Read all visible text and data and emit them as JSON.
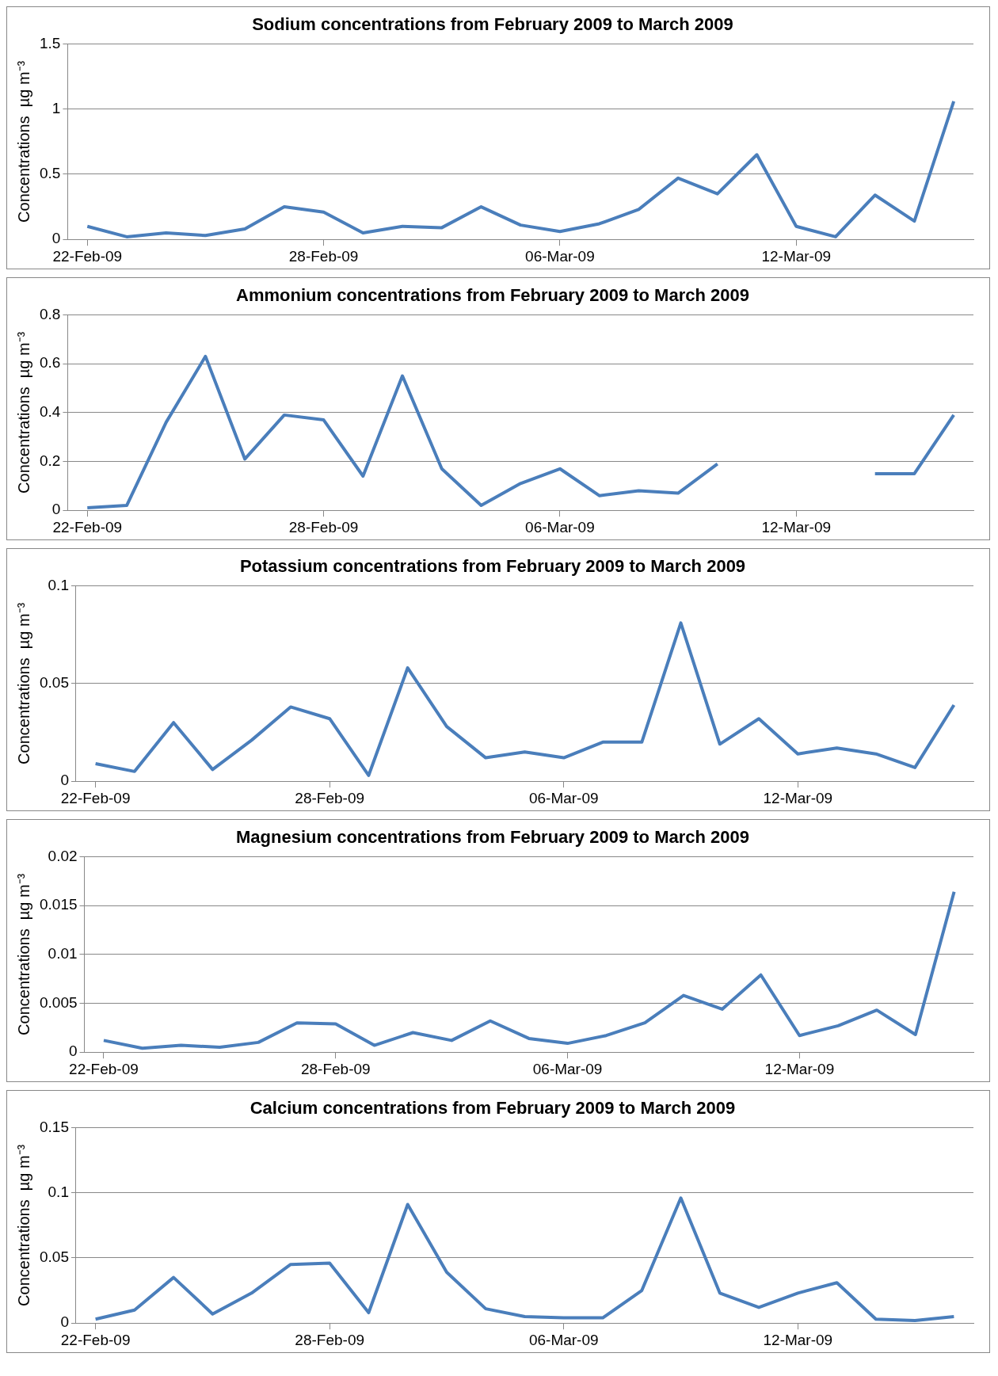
{
  "chart_data": [
    {
      "type": "line",
      "title": "Sodium concentrations from February 2009 to March 2009",
      "ylabel": "Concentrations  µg m⁻³",
      "color": "#4a7ebb",
      "marker": "none",
      "grid": "y",
      "legend": false,
      "x": [
        "2009-02-22",
        "2009-02-23",
        "2009-02-24",
        "2009-02-25",
        "2009-02-26",
        "2009-02-27",
        "2009-02-28",
        "2009-03-01",
        "2009-03-02",
        "2009-03-03",
        "2009-03-04",
        "2009-03-05",
        "2009-03-06",
        "2009-03-07",
        "2009-03-08",
        "2009-03-09",
        "2009-03-10",
        "2009-03-11",
        "2009-03-12",
        "2009-03-13",
        "2009-03-14",
        "2009-03-15",
        "2009-03-16"
      ],
      "values": [
        0.1,
        0.02,
        0.05,
        0.03,
        0.08,
        0.25,
        0.21,
        0.05,
        0.1,
        0.09,
        0.25,
        0.11,
        0.06,
        0.12,
        0.23,
        0.47,
        0.35,
        0.65,
        0.1,
        0.02,
        0.34,
        0.14,
        1.06
      ],
      "xlim": [
        "2009-02-21T12:00",
        "2009-03-16T12:00"
      ],
      "xticks": [
        {
          "value": "2009-02-22",
          "label": "22-Feb-09"
        },
        {
          "value": "2009-02-28",
          "label": "28-Feb-09"
        },
        {
          "value": "2009-03-06",
          "label": "06-Mar-09"
        },
        {
          "value": "2009-03-12",
          "label": "12-Mar-09"
        }
      ],
      "ylim": [
        0,
        1.5
      ],
      "yticks": [
        0,
        0.5,
        1,
        1.5
      ]
    },
    {
      "type": "line",
      "title": "Ammonium concentrations from February 2009 to March 2009",
      "ylabel": "Concentrations  µg m⁻³",
      "color": "#4a7ebb",
      "marker": "none",
      "grid": "y",
      "legend": false,
      "x": [
        "2009-02-22",
        "2009-02-23",
        "2009-02-24",
        "2009-02-25",
        "2009-02-26",
        "2009-02-27",
        "2009-02-28",
        "2009-03-01",
        "2009-03-02",
        "2009-03-03",
        "2009-03-04",
        "2009-03-05",
        "2009-03-06",
        "2009-03-07",
        "2009-03-08",
        "2009-03-09",
        "2009-03-10",
        "2009-03-11",
        "2009-03-12",
        "2009-03-13",
        "2009-03-14",
        "2009-03-15",
        "2009-03-16"
      ],
      "values": [
        0.01,
        0.02,
        0.36,
        0.63,
        0.21,
        0.39,
        0.37,
        0.14,
        0.55,
        0.17,
        0.02,
        0.11,
        0.17,
        0.06,
        0.08,
        0.07,
        0.19,
        null,
        null,
        null,
        0.15,
        0.15,
        0.39
      ],
      "xlim": [
        "2009-02-21T12:00",
        "2009-03-16T12:00"
      ],
      "xticks": [
        {
          "value": "2009-02-22",
          "label": "22-Feb-09"
        },
        {
          "value": "2009-02-28",
          "label": "28-Feb-09"
        },
        {
          "value": "2009-03-06",
          "label": "06-Mar-09"
        },
        {
          "value": "2009-03-12",
          "label": "12-Mar-09"
        }
      ],
      "ylim": [
        0,
        0.8
      ],
      "yticks": [
        0,
        0.2,
        0.4,
        0.6,
        0.8
      ]
    },
    {
      "type": "line",
      "title": "Potassium concentrations from February 2009 to March 2009",
      "ylabel": "Concentrations  µg m⁻³",
      "color": "#4a7ebb",
      "marker": "none",
      "grid": "y",
      "legend": false,
      "x": [
        "2009-02-22",
        "2009-02-23",
        "2009-02-24",
        "2009-02-25",
        "2009-02-26",
        "2009-02-27",
        "2009-02-28",
        "2009-03-01",
        "2009-03-02",
        "2009-03-03",
        "2009-03-04",
        "2009-03-05",
        "2009-03-06",
        "2009-03-07",
        "2009-03-08",
        "2009-03-09",
        "2009-03-10",
        "2009-03-11",
        "2009-03-12",
        "2009-03-13",
        "2009-03-14",
        "2009-03-15",
        "2009-03-16"
      ],
      "values": [
        0.009,
        0.005,
        0.03,
        0.006,
        0.021,
        0.038,
        0.032,
        0.003,
        0.058,
        0.028,
        0.012,
        0.015,
        0.012,
        0.02,
        0.02,
        0.081,
        0.019,
        0.032,
        0.014,
        0.017,
        0.014,
        0.007,
        0.039
      ],
      "xlim": [
        "2009-02-21T12:00",
        "2009-03-16T12:00"
      ],
      "xticks": [
        {
          "value": "2009-02-22",
          "label": "22-Feb-09"
        },
        {
          "value": "2009-02-28",
          "label": "28-Feb-09"
        },
        {
          "value": "2009-03-06",
          "label": "06-Mar-09"
        },
        {
          "value": "2009-03-12",
          "label": "12-Mar-09"
        }
      ],
      "ylim": [
        0,
        0.1
      ],
      "yticks": [
        0,
        0.05,
        0.1
      ]
    },
    {
      "type": "line",
      "title": "Magnesium concentrations from February 2009 to March 2009",
      "ylabel": "Concentrations  µg m⁻³",
      "color": "#4a7ebb",
      "marker": "none",
      "grid": "y",
      "legend": false,
      "x": [
        "2009-02-22",
        "2009-02-23",
        "2009-02-24",
        "2009-02-25",
        "2009-02-26",
        "2009-02-27",
        "2009-02-28",
        "2009-03-01",
        "2009-03-02",
        "2009-03-03",
        "2009-03-04",
        "2009-03-05",
        "2009-03-06",
        "2009-03-07",
        "2009-03-08",
        "2009-03-09",
        "2009-03-10",
        "2009-03-11",
        "2009-03-12",
        "2009-03-13",
        "2009-03-14",
        "2009-03-15",
        "2009-03-16"
      ],
      "values": [
        0.0012,
        0.0004,
        0.0007,
        0.0005,
        0.001,
        0.003,
        0.0029,
        0.0007,
        0.002,
        0.0012,
        0.0032,
        0.0014,
        0.0009,
        0.0017,
        0.003,
        0.0058,
        0.0044,
        0.0079,
        0.0017,
        0.0027,
        0.0043,
        0.0018,
        0.0164
      ],
      "xlim": [
        "2009-02-21T12:00",
        "2009-03-16T12:00"
      ],
      "xticks": [
        {
          "value": "2009-02-22",
          "label": "22-Feb-09"
        },
        {
          "value": "2009-02-28",
          "label": "28-Feb-09"
        },
        {
          "value": "2009-03-06",
          "label": "06-Mar-09"
        },
        {
          "value": "2009-03-12",
          "label": "12-Mar-09"
        }
      ],
      "ylim": [
        0,
        0.02
      ],
      "yticks": [
        0,
        0.005,
        0.01,
        0.015,
        0.02
      ]
    },
    {
      "type": "line",
      "title": "Calcium concentrations from February 2009 to March 2009",
      "ylabel": "Concentrations  µg m⁻³",
      "color": "#4a7ebb",
      "marker": "none",
      "grid": "y",
      "legend": false,
      "x": [
        "2009-02-22",
        "2009-02-23",
        "2009-02-24",
        "2009-02-25",
        "2009-02-26",
        "2009-02-27",
        "2009-02-28",
        "2009-03-01",
        "2009-03-02",
        "2009-03-03",
        "2009-03-04",
        "2009-03-05",
        "2009-03-06",
        "2009-03-07",
        "2009-03-08",
        "2009-03-09",
        "2009-03-10",
        "2009-03-11",
        "2009-03-12",
        "2009-03-13",
        "2009-03-14",
        "2009-03-15",
        "2009-03-16"
      ],
      "values": [
        0.003,
        0.01,
        0.035,
        0.007,
        0.023,
        0.045,
        0.046,
        0.008,
        0.091,
        0.039,
        0.011,
        0.005,
        0.004,
        0.004,
        0.025,
        0.096,
        0.023,
        0.012,
        0.023,
        0.031,
        0.003,
        0.002,
        0.005
      ],
      "xlim": [
        "2009-02-21T12:00",
        "2009-03-16T12:00"
      ],
      "xticks": [
        {
          "value": "2009-02-22",
          "label": "22-Feb-09"
        },
        {
          "value": "2009-02-28",
          "label": "28-Feb-09"
        },
        {
          "value": "2009-03-06",
          "label": "06-Mar-09"
        },
        {
          "value": "2009-03-12",
          "label": "12-Mar-09"
        }
      ],
      "ylim": [
        0,
        0.15
      ],
      "yticks": [
        0,
        0.05,
        0.1,
        0.15
      ]
    }
  ]
}
